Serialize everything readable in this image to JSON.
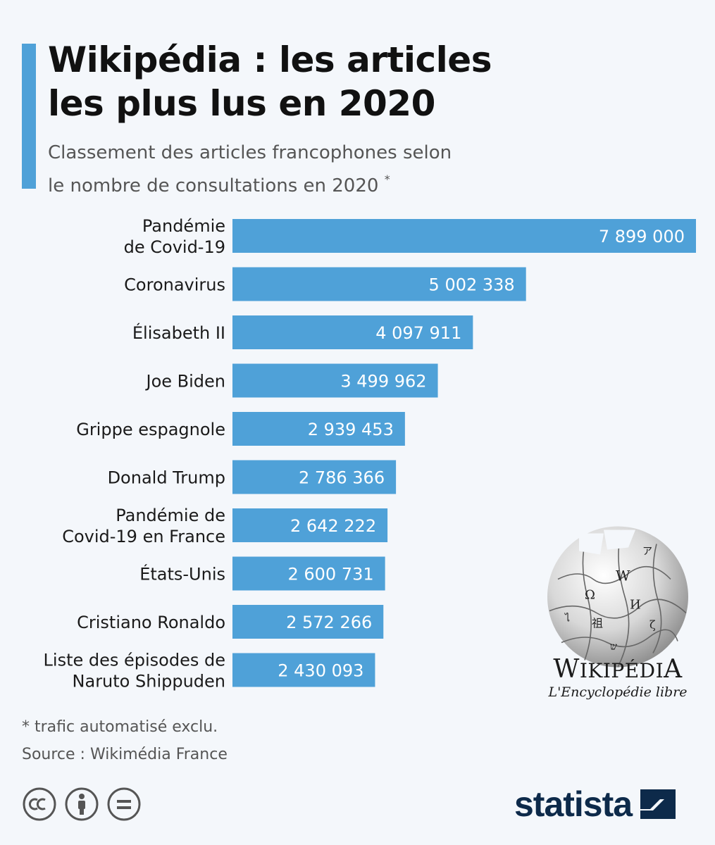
{
  "header": {
    "title_line1": "Wikipédia : les articles",
    "title_line2": "les plus lus en 2020",
    "subtitle_line1": "Classement des articles francophones selon",
    "subtitle_line2": "le nombre de consultations en 2020",
    "subtitle_mark": "*"
  },
  "colors": {
    "accent": "#4fa1d8",
    "bar": "#4fa1d8",
    "brand_dark": "#0d2a4a"
  },
  "chart_data": {
    "type": "bar",
    "orientation": "horizontal",
    "categories": [
      [
        "Pandémie",
        "de Covid-19"
      ],
      [
        "Coronavirus"
      ],
      [
        "Élisabeth II"
      ],
      [
        "Joe Biden"
      ],
      [
        "Grippe espagnole"
      ],
      [
        "Donald Trump"
      ],
      [
        "Pandémie de",
        "Covid-19 en France"
      ],
      [
        "États-Unis"
      ],
      [
        "Cristiano Ronaldo"
      ],
      [
        "Liste des épisodes de",
        "Naruto Shippuden"
      ]
    ],
    "values": [
      7899000,
      5002338,
      4097911,
      3499962,
      2939453,
      2786366,
      2642222,
      2600731,
      2572266,
      2430093
    ],
    "value_labels": [
      "7 899 000",
      "5 002 338",
      "4 097 911",
      "3 499 962",
      "2 939 453",
      "2 786 366",
      "2 642 222",
      "2 600 731",
      "2 572 266",
      "2 430 093"
    ],
    "xlim": [
      0,
      7899000
    ],
    "grid": false,
    "legend": "none"
  },
  "logo": {
    "wordmark_initial": "W",
    "wordmark_rest": "IKIPÉDI",
    "wordmark_final": "A",
    "tagline": "L'Encyclopédie libre"
  },
  "footer": {
    "footnote": "* trafic automatisé exclu.",
    "source": "Source : Wikimédia France",
    "brand": "statista",
    "license_icons": [
      "cc-icon",
      "attribution-icon",
      "no-derivatives-icon"
    ]
  }
}
